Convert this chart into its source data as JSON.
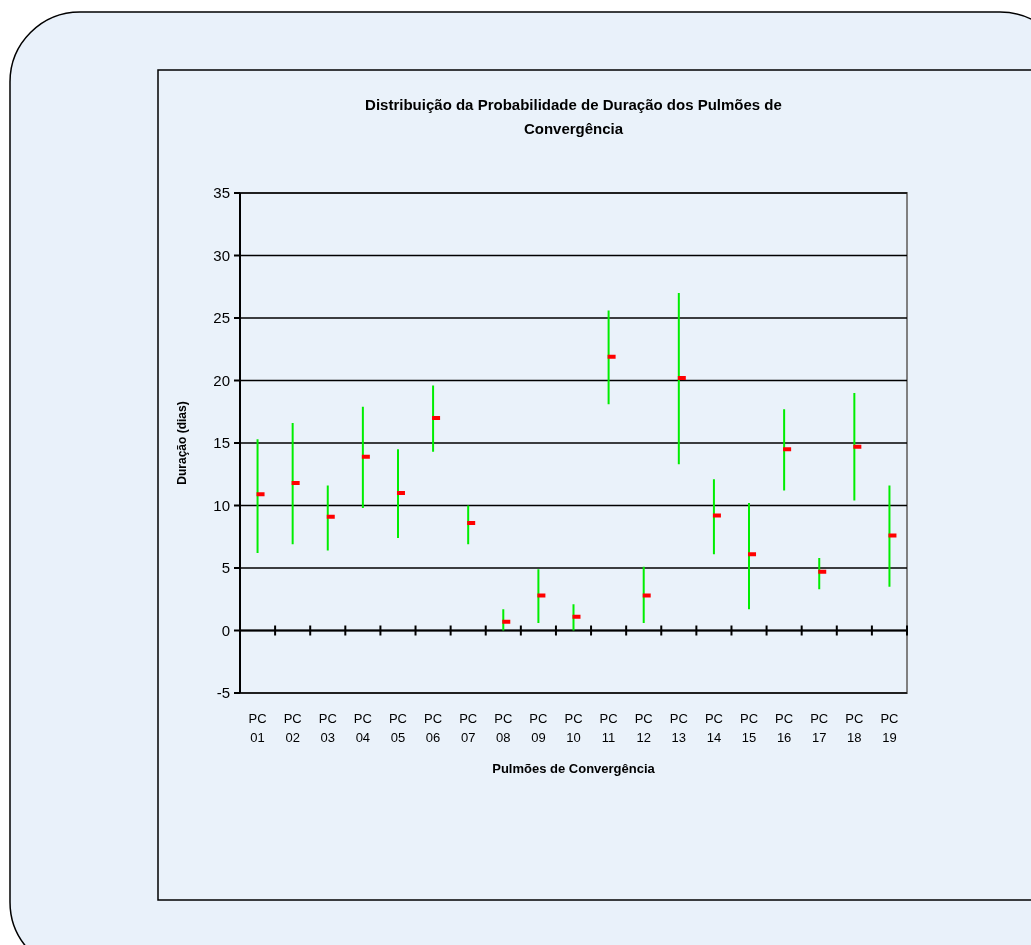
{
  "chart_data": {
    "type": "scatter",
    "title": "Distribuição da Probabilidade de Duração dos Pulmões de Convergência",
    "xlabel": "Pulmões de Convergência",
    "ylabel": "Duração (dias)",
    "categories": [
      "PC 01",
      "PC 02",
      "PC 03",
      "PC 04",
      "PC 05",
      "PC 06",
      "PC 07",
      "PC 08",
      "PC 09",
      "PC 10",
      "PC 11",
      "PC 12",
      "PC 13",
      "PC 14",
      "PC 15",
      "PC 16",
      "PC 17",
      "PC 18",
      "PC 19"
    ],
    "series": [
      {
        "color": "#ff0000",
        "values": [
          10.9,
          11.8,
          9.1,
          13.9,
          11.0,
          17.0,
          8.6,
          0.7,
          2.8,
          1.1,
          21.9,
          2.8,
          20.2,
          9.2,
          6.1,
          14.5,
          4.7,
          14.7,
          7.6
        ],
        "errors": [
          [
            6.2,
            15.3
          ],
          [
            6.9,
            16.6
          ],
          [
            6.4,
            11.6
          ],
          [
            9.8,
            17.9
          ],
          [
            7.4,
            14.5
          ],
          [
            14.3,
            19.6
          ],
          [
            6.9,
            10.0
          ],
          [
            0,
            1.7
          ],
          [
            0.6,
            4.9
          ],
          [
            0,
            2.1
          ],
          [
            18.1,
            25.6
          ],
          [
            0.6,
            5.1
          ],
          [
            13.3,
            27.0
          ],
          [
            6.1,
            12.1
          ],
          [
            1.7,
            10.2
          ],
          [
            11.2,
            17.7
          ],
          [
            3.3,
            5.8
          ],
          [
            10.4,
            19.0
          ],
          [
            3.5,
            11.6
          ]
        ]
      }
    ],
    "ylim": [
      -5,
      35
    ],
    "yticks": [
      -5,
      0,
      5,
      10,
      15,
      20,
      25,
      30,
      35
    ],
    "grid": "y",
    "marker": "square"
  }
}
